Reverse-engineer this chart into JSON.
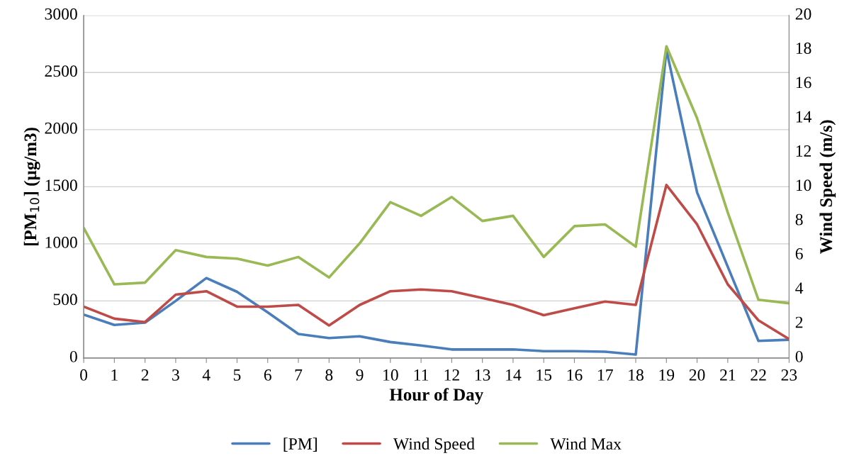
{
  "chart_data": {
    "type": "line",
    "xlabel": "Hour of Day",
    "ylabel": "[PM$_{10}$] (µg/m3)",
    "y2label": "Wind Speed (m/s)",
    "x": [
      0,
      1,
      2,
      3,
      4,
      5,
      6,
      7,
      8,
      9,
      10,
      11,
      12,
      13,
      14,
      15,
      16,
      17,
      18,
      19,
      20,
      21,
      22,
      23
    ],
    "xlim": [
      0,
      23
    ],
    "xticks": [
      0,
      1,
      2,
      3,
      4,
      5,
      6,
      7,
      8,
      9,
      10,
      11,
      12,
      13,
      14,
      15,
      16,
      17,
      18,
      19,
      20,
      21,
      22,
      23
    ],
    "ylim": [
      0,
      3000
    ],
    "yticks": [
      0,
      500,
      1000,
      1500,
      2000,
      2500,
      3000
    ],
    "y2lim": [
      0,
      20
    ],
    "y2ticks": [
      0,
      2,
      4,
      6,
      8,
      10,
      12,
      14,
      16,
      18,
      20
    ],
    "grid": "y",
    "legend": "bottom",
    "marker": "none",
    "line_style": "solid",
    "series": [
      {
        "name": "[PM]",
        "color": "#4a7ebb",
        "values": [
          380,
          290,
          310,
          500,
          700,
          580,
          400,
          210,
          175,
          190,
          140,
          110,
          75,
          75,
          75,
          60,
          60,
          55,
          30,
          2700,
          1450,
          800,
          150,
          160
        ]
      },
      {
        "name": "Wind Speed",
        "color": "#be4b48",
        "axis": "y2",
        "values": [
          3.0,
          2.3,
          2.1,
          3.7,
          3.9,
          3.0,
          3.0,
          3.1,
          1.9,
          3.1,
          3.9,
          4.0,
          3.9,
          3.5,
          3.1,
          2.5,
          2.9,
          3.3,
          3.1,
          10.1,
          7.8,
          4.3,
          2.2,
          1.1
        ]
      },
      {
        "name": "Wind Max",
        "color": "#98b954",
        "axis": "y2",
        "values": [
          7.6,
          4.3,
          4.4,
          6.3,
          5.9,
          5.8,
          5.4,
          5.9,
          4.7,
          6.7,
          9.1,
          8.3,
          9.4,
          8.0,
          8.3,
          5.9,
          7.7,
          7.8,
          6.5,
          18.2,
          14.0,
          8.5,
          3.4,
          3.2
        ]
      }
    ]
  }
}
